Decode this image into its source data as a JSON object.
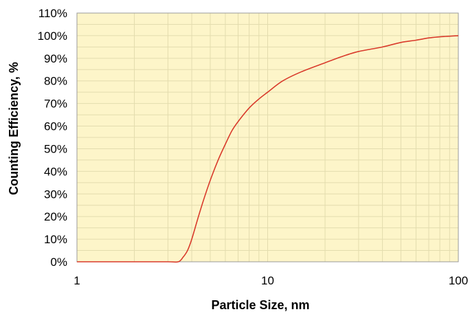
{
  "chart_data": {
    "type": "line",
    "title": "",
    "xlabel": "Particle Size, nm",
    "ylabel": "Counting Efficiency, %",
    "x_scale": "log",
    "xlim": [
      1,
      100
    ],
    "ylim": [
      0,
      110
    ],
    "x_ticks": [
      1,
      10,
      100
    ],
    "x_tick_labels": [
      "1",
      "10",
      "100"
    ],
    "y_ticks": [
      0,
      10,
      20,
      30,
      40,
      50,
      60,
      70,
      80,
      90,
      100,
      110
    ],
    "y_tick_labels": [
      "0%",
      "10%",
      "20%",
      "30%",
      "40%",
      "50%",
      "60%",
      "70%",
      "80%",
      "90%",
      "100%",
      "110%"
    ],
    "grid": true,
    "legend": "none",
    "background_color": "#fdf5c9",
    "grid_color": "#e3dcae",
    "line_color": "#d93a2b",
    "series": [
      {
        "x": [
          1,
          2,
          3,
          3.4,
          3.6,
          3.8,
          4,
          4.3,
          4.6,
          5,
          5.5,
          6,
          6.5,
          7,
          8,
          9,
          10,
          12,
          15,
          20,
          25,
          30,
          40,
          50,
          60,
          70,
          80,
          100
        ],
        "y": [
          0,
          0,
          0,
          0,
          2,
          5,
          10,
          19,
          27,
          36,
          45,
          52,
          58,
          62,
          68,
          72,
          75,
          80,
          84,
          88,
          91,
          93,
          95,
          97,
          98,
          99,
          99.5,
          100
        ]
      }
    ]
  }
}
